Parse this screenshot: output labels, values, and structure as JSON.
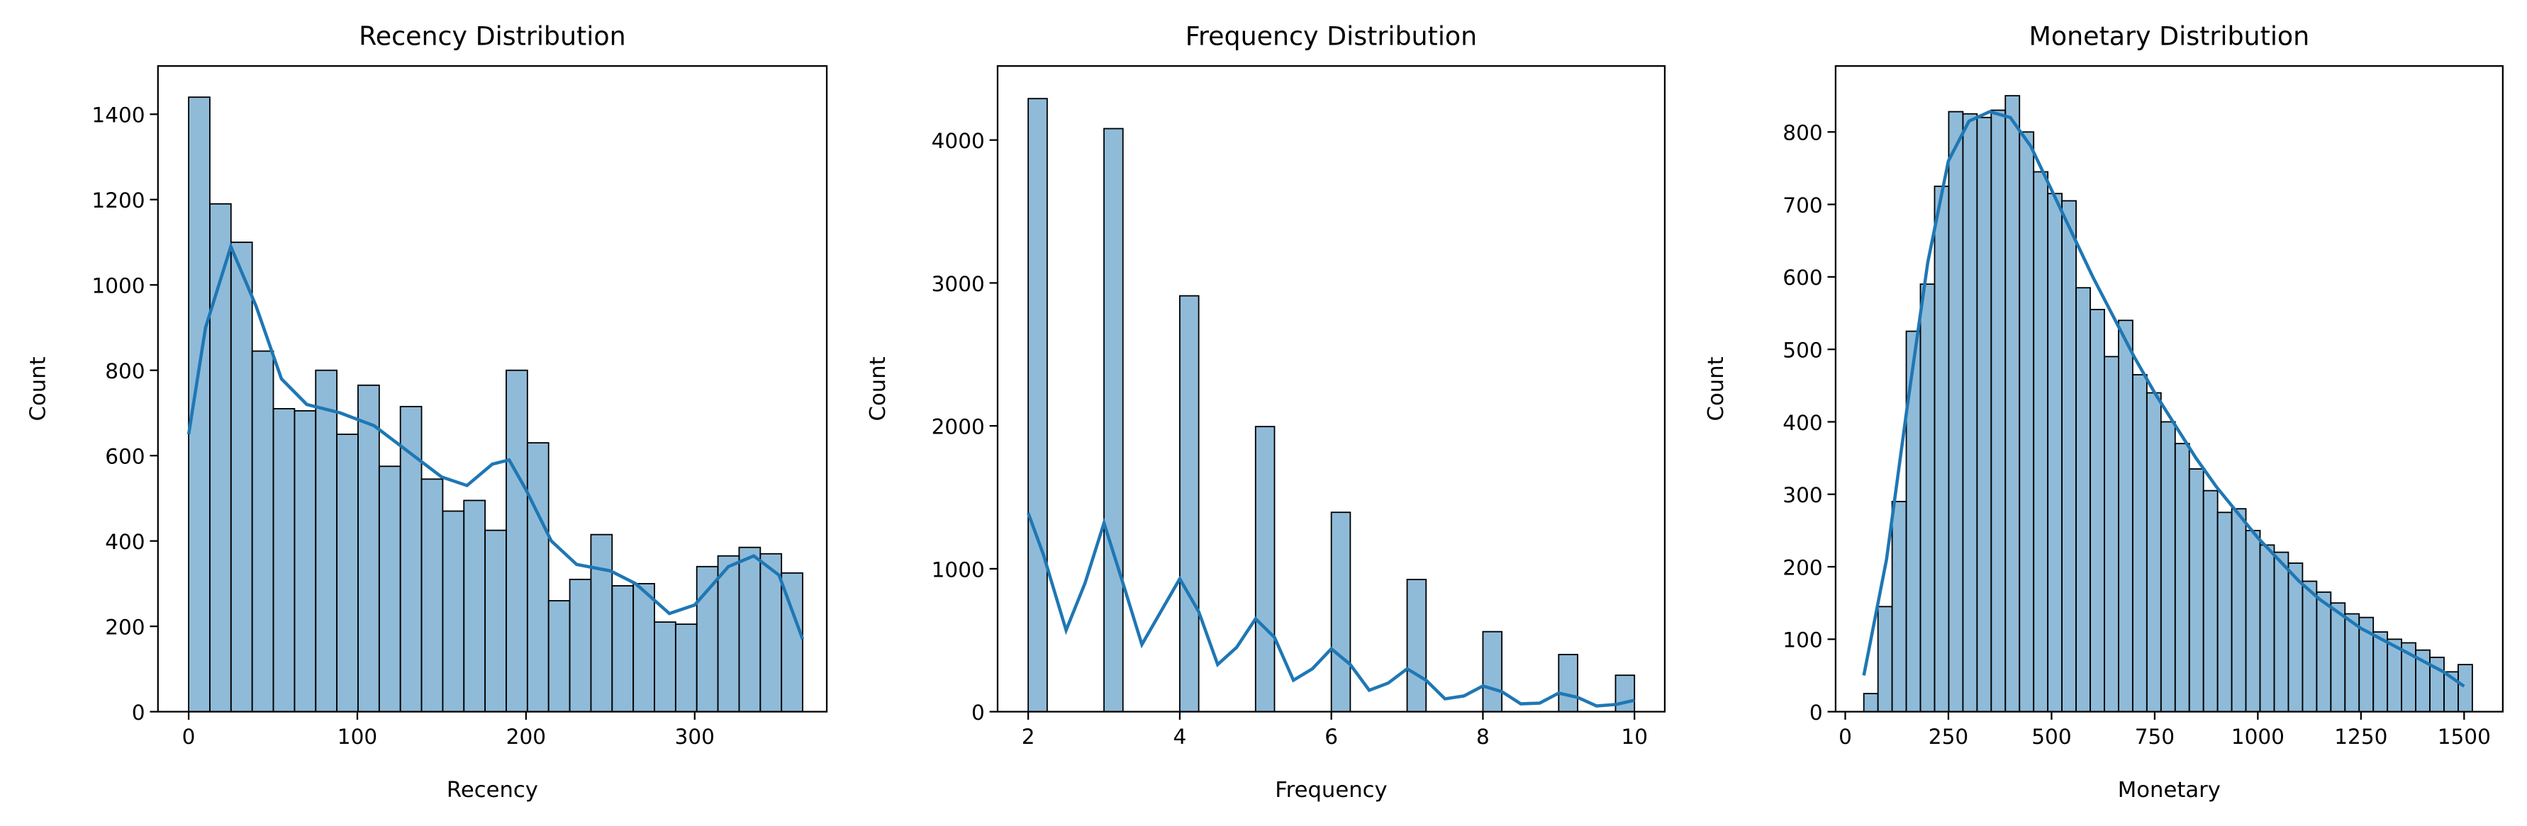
{
  "chart_data": [
    {
      "type": "histogram",
      "title": "Recency Distribution",
      "xlabel": "Recency",
      "ylabel": "Count",
      "color": "#1f77b4",
      "bins": [
        0,
        12.55,
        25.1,
        37.66,
        50.21,
        62.76,
        75.31,
        87.86,
        100.41,
        112.97,
        125.52,
        138.07,
        150.62,
        163.17,
        175.72,
        188.28,
        200.83,
        213.38,
        225.93,
        238.48,
        251.03,
        263.59,
        276.14,
        288.69,
        301.24,
        313.79,
        326.34,
        338.9,
        351.45,
        364
      ],
      "counts": [
        1440,
        1190,
        1100,
        845,
        710,
        705,
        800,
        650,
        765,
        575,
        715,
        545,
        470,
        495,
        425,
        800,
        630,
        260,
        310,
        415,
        295,
        300,
        210,
        205,
        340,
        365,
        385,
        370,
        325
      ],
      "kde": {
        "x": [
          0,
          10,
          25,
          40,
          55,
          70,
          90,
          110,
          130,
          150,
          165,
          180,
          190,
          200,
          215,
          230,
          250,
          265,
          285,
          300,
          320,
          335,
          350,
          364
        ],
        "y": [
          650,
          900,
          1090,
          950,
          780,
          720,
          700,
          670,
          610,
          550,
          530,
          580,
          590,
          520,
          400,
          345,
          330,
          300,
          230,
          250,
          340,
          365,
          320,
          170
        ]
      },
      "xlim": [
        -18.2,
        378.3
      ],
      "ylim": [
        0,
        1513
      ],
      "xticks": [
        0,
        100,
        200,
        300
      ],
      "yticks": [
        0,
        200,
        400,
        600,
        800,
        1000,
        1200,
        1400
      ]
    },
    {
      "type": "histogram",
      "title": "Frequency Distribution",
      "xlabel": "Frequency",
      "ylabel": "Count",
      "color": "#1f77b4",
      "bins": [
        2,
        2.25,
        2.5,
        2.75,
        3,
        3.25,
        3.5,
        3.75,
        4,
        4.25,
        4.5,
        4.75,
        5,
        5.25,
        5.5,
        5.75,
        6,
        6.25,
        6.5,
        6.75,
        7,
        7.25,
        7.5,
        7.75,
        8,
        8.25,
        8.5,
        8.75,
        9,
        9.25,
        9.5,
        9.75,
        10
      ],
      "counts": [
        4290,
        0,
        0,
        0,
        4080,
        0,
        0,
        0,
        2910,
        0,
        0,
        0,
        1995,
        0,
        0,
        0,
        1395,
        0,
        0,
        0,
        925,
        0,
        0,
        0,
        560,
        0,
        0,
        0,
        400,
        0,
        0,
        255
      ],
      "kde": {
        "x": [
          2,
          2.2,
          2.5,
          2.75,
          3,
          3.25,
          3.5,
          3.75,
          4,
          4.25,
          4.5,
          4.75,
          5,
          5.25,
          5.5,
          5.75,
          6,
          6.25,
          6.5,
          6.75,
          7,
          7.25,
          7.5,
          7.75,
          8,
          8.25,
          8.5,
          8.75,
          9,
          9.25,
          9.5,
          9.75,
          10
        ],
        "y": [
          1390,
          1100,
          570,
          900,
          1320,
          900,
          470,
          700,
          930,
          700,
          330,
          450,
          650,
          520,
          220,
          300,
          440,
          330,
          150,
          200,
          300,
          220,
          90,
          110,
          180,
          140,
          55,
          60,
          130,
          100,
          40,
          50,
          80
        ]
      },
      "xlim": [
        1.596,
        10.4
      ],
      "ylim": [
        0,
        4518
      ],
      "xticks": [
        2,
        4,
        6,
        8,
        10
      ],
      "yticks": [
        0,
        1000,
        2000,
        3000,
        4000
      ]
    },
    {
      "type": "histogram",
      "title": "Monetary Distribution",
      "xlabel": "Monetary",
      "ylabel": "Count",
      "color": "#1f77b4",
      "bins": [
        45,
        79.3,
        113.6,
        147.9,
        182.2,
        216.5,
        250.8,
        285.1,
        319.4,
        353.7,
        388,
        422.3,
        456.6,
        490.9,
        525.2,
        559.5,
        593.8,
        628.1,
        662.4,
        696.7,
        731,
        765.3,
        799.6,
        833.9,
        868.2,
        902.5,
        936.8,
        971.1,
        1005.4,
        1039.7,
        1074,
        1108.3,
        1142.6,
        1176.9,
        1211.2,
        1245.5,
        1279.8,
        1314.1,
        1348.4,
        1382.7,
        1417,
        1451.3,
        1485.6,
        1519.9
      ],
      "counts": [
        25,
        145,
        290,
        525,
        590,
        725,
        828,
        825,
        820,
        830,
        850,
        800,
        745,
        715,
        705,
        585,
        555,
        490,
        540,
        465,
        440,
        400,
        370,
        335,
        305,
        275,
        280,
        250,
        230,
        220,
        205,
        180,
        165,
        150,
        135,
        130,
        110,
        100,
        95,
        85,
        75,
        55,
        65
      ],
      "kde": {
        "x": [
          45,
          100,
          150,
          200,
          250,
          300,
          350,
          400,
          450,
          500,
          550,
          600,
          650,
          700,
          750,
          800,
          850,
          900,
          950,
          1000,
          1050,
          1100,
          1150,
          1200,
          1250,
          1300,
          1350,
          1400,
          1450,
          1500
        ],
        "y": [
          50,
          210,
          420,
          620,
          760,
          815,
          828,
          820,
          780,
          720,
          660,
          600,
          545,
          490,
          440,
          395,
          350,
          310,
          275,
          240,
          210,
          180,
          155,
          135,
          115,
          100,
          85,
          70,
          55,
          35
        ]
      },
      "xlim": [
        -23.4,
        1593.75
      ],
      "ylim": [
        0,
        891
      ],
      "xticks": [
        0,
        250,
        500,
        750,
        1000,
        1250,
        1500
      ],
      "yticks": [
        0,
        100,
        200,
        300,
        400,
        500,
        600,
        700,
        800
      ]
    }
  ]
}
